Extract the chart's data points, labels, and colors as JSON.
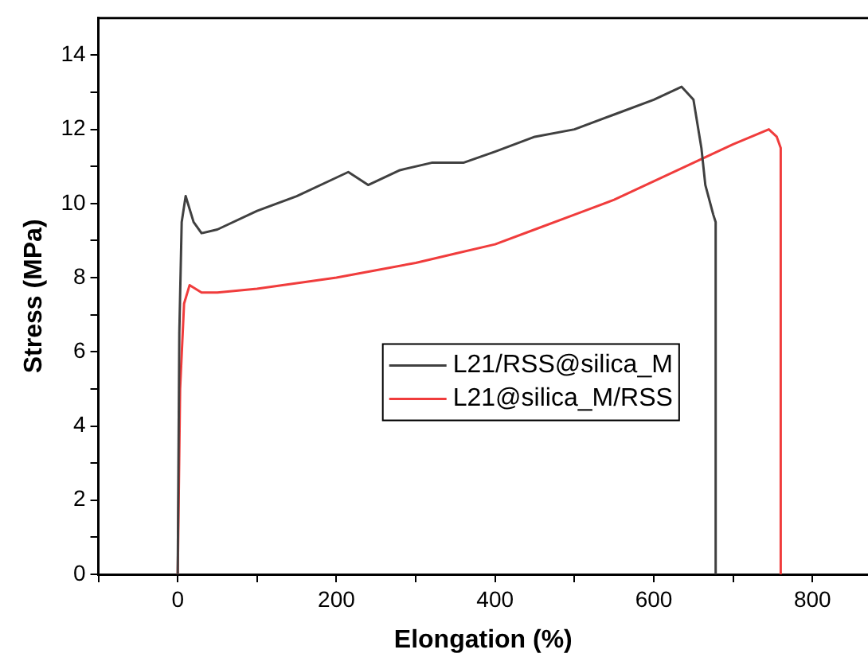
{
  "chart_data": {
    "type": "line",
    "xlabel": "Elongation (%)",
    "ylabel": "Stress (MPa)",
    "xlim": [
      -100,
      870
    ],
    "ylim": [
      0,
      15
    ],
    "xticks": [
      {
        "value": -100,
        "label": null
      },
      0,
      {
        "value": 100,
        "label": null
      },
      200,
      {
        "value": 300,
        "label": null
      },
      400,
      {
        "value": 500,
        "label": null
      },
      600,
      {
        "value": 700,
        "label": null
      },
      800
    ],
    "yticks": [
      0,
      {
        "value": 1,
        "label": null
      },
      2,
      {
        "value": 3,
        "label": null
      },
      4,
      {
        "value": 5,
        "label": null
      },
      6,
      {
        "value": 7,
        "label": null
      },
      8,
      {
        "value": 9,
        "label": null
      },
      10,
      {
        "value": 11,
        "label": null
      },
      12,
      {
        "value": 13,
        "label": null
      },
      14
    ],
    "grid": false,
    "legend": "center",
    "marker": "none",
    "line_style": "solid",
    "series": [
      {
        "name": "L21/RSS@silica_M",
        "color": "#404040",
        "x": [
          0,
          2,
          5,
          10,
          20,
          30,
          50,
          100,
          150,
          200,
          215,
          240,
          280,
          320,
          360,
          400,
          450,
          500,
          550,
          600,
          635,
          650,
          660,
          665,
          675,
          678,
          678
        ],
        "values": [
          0,
          6.5,
          9.5,
          10.2,
          9.5,
          9.2,
          9.3,
          9.8,
          10.2,
          10.7,
          10.85,
          10.5,
          10.9,
          11.1,
          11.1,
          11.4,
          11.8,
          12.0,
          12.4,
          12.8,
          13.15,
          12.8,
          11.5,
          10.5,
          9.7,
          9.5,
          0
        ]
      },
      {
        "name": "L21@silica_M/RSS",
        "color": "#f03c3c",
        "x": [
          0,
          3,
          8,
          15,
          30,
          50,
          100,
          150,
          200,
          250,
          300,
          350,
          400,
          450,
          500,
          550,
          600,
          650,
          700,
          745,
          755,
          760,
          760
        ],
        "values": [
          0,
          5,
          7.3,
          7.8,
          7.6,
          7.6,
          7.7,
          7.85,
          8.0,
          8.2,
          8.4,
          8.65,
          8.9,
          9.3,
          9.7,
          10.1,
          10.6,
          11.1,
          11.6,
          12.0,
          11.8,
          11.5,
          0
        ]
      }
    ]
  }
}
